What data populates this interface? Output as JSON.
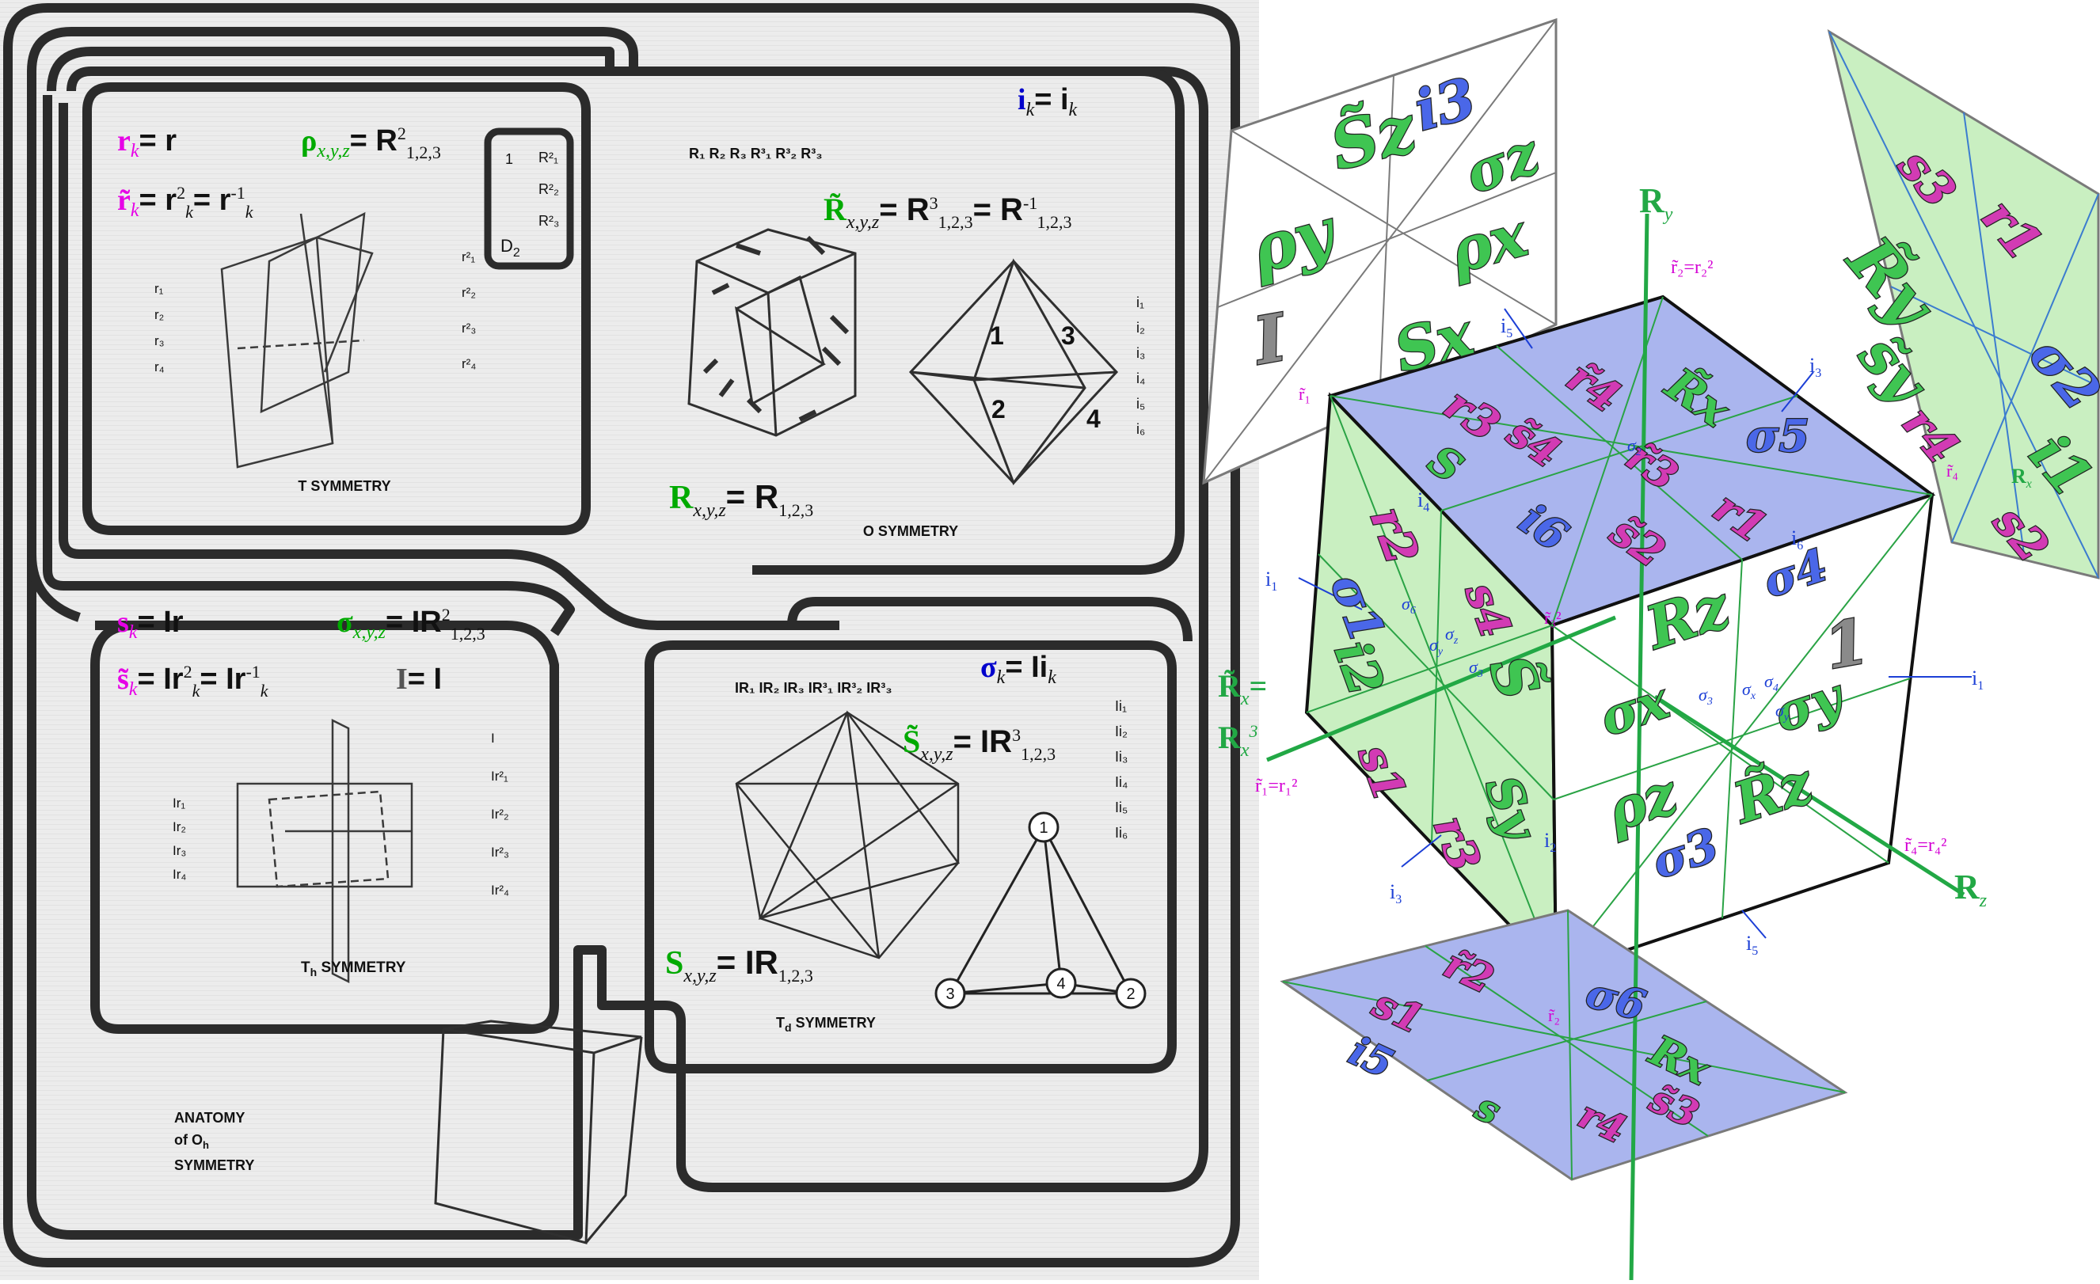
{
  "colors": {
    "scan_bg": "#e9e9e9",
    "frame": "#2b2b2b",
    "magenta": "#e600e6",
    "green": "#00aa00",
    "blue": "#0000cc",
    "cube_green": "#c9efc1",
    "cube_blue": "#aab5ee",
    "label_blue": "#1c3fd6",
    "label_green": "#22a845"
  },
  "left_panel": {
    "title": {
      "line1": "ANATOMY",
      "line2": "of O",
      "sub": "h",
      "line3": "SYMMETRY"
    },
    "t_panel": {
      "caption": "T SYMMETRY",
      "eq_r": {
        "lhs": "r",
        "sub": "k",
        "rhs": "= r"
      },
      "eq_rtilde": {
        "lhs": "r̃",
        "sub": "k",
        "rhs": "= r",
        "sup1": "2",
        "mid": "= r",
        "sub2": "k",
        "sup2": "-1",
        "sub3": "k"
      },
      "eq_rho": {
        "lhs": "ρ",
        "sub": "x,y,z",
        "rhs": "= R",
        "sup": "2",
        "sub2": "1,2,3"
      },
      "d2_box": {
        "label": "D",
        "sub": "2",
        "one": "1",
        "r_items": [
          "R²₁",
          "R²₂",
          "R²₃"
        ]
      },
      "r_list": [
        "r₁",
        "r₂",
        "r₃",
        "r₄"
      ],
      "r2_list": [
        "r²₁",
        "r²₂",
        "r²₃",
        "r²₄"
      ]
    },
    "o_panel": {
      "caption": "O SYMMETRY",
      "eq_i": {
        "lhs": "i",
        "sub": "k",
        "rhs": "= i",
        "sub2": "k"
      },
      "eq_Rtilde": {
        "lhs": "R̃",
        "sub": "x,y,z",
        "rhs": "= R",
        "sup": "3",
        "sub2": "1,2,3",
        "mid": "= R",
        "sup2": "-1",
        "sub3": "1,2,3"
      },
      "eq_R": {
        "lhs": "R",
        "sub": "x,y,z",
        "rhs": "= R",
        "sub2": "1,2,3"
      },
      "header": "R₁ R₂ R₃ R³₁ R³₂ R³₃",
      "i_list": [
        "i₁",
        "i₂",
        "i₃",
        "i₄",
        "i₅",
        "i₆"
      ],
      "oct_nums": [
        "1",
        "3",
        "2",
        "4"
      ]
    },
    "th_panel": {
      "caption": "T",
      "caption_sub": "h",
      "caption_rest": " SYMMETRY",
      "eq_s": {
        "lhs": "s",
        "sub": "k",
        "rhs": "= Ir"
      },
      "eq_stilde": {
        "lhs": "s̃",
        "sub": "k",
        "rhs": "= Ir",
        "sup": "2",
        "sub2": "k",
        "mid": "= Ir",
        "sup2": "-1",
        "sub3": "k"
      },
      "eq_sigma": {
        "lhs": "σ",
        "sub": "x,y,z",
        "rhs": "= IR",
        "sup": "2",
        "sub2": "1,2,3"
      },
      "eq_I": {
        "lhs": "I",
        "rhs": "= I"
      },
      "ir_list": [
        "Ir₁",
        "Ir₂",
        "Ir₃",
        "Ir₄"
      ],
      "ir2_list": [
        "I",
        "Ir²₁",
        "Ir²₂",
        "Ir²₃",
        "Ir²₄"
      ]
    },
    "td_panel": {
      "caption": "T",
      "caption_sub": "d",
      "caption_rest": " SYMMETRY",
      "eq_sigmak": {
        "lhs": "σ",
        "sub": "k",
        "rhs": "= Ii",
        "sub2": "k"
      },
      "eq_Stilde": {
        "lhs": "S̃",
        "sub": "x,y,z",
        "rhs": "= IR",
        "sup": "3",
        "sub2": "1,2,3"
      },
      "eq_S": {
        "lhs": "S",
        "sub": "x,y,z",
        "rhs": "= IR",
        "sub2": "1,2,3"
      },
      "header": "IR₁ IR₂ IR₃ IR³₁ IR³₂ IR³₃",
      "ii_list": [
        "Ii₁",
        "Ii₂",
        "Ii₃",
        "Ii₄",
        "Ii₅",
        "Ii₆"
      ],
      "tri_nums": [
        "1",
        "3",
        "4",
        "2"
      ]
    }
  },
  "right_panel": {
    "back_left_panel": [
      "S̃z",
      "i3",
      "σz",
      "ρy",
      "ρx",
      "I",
      "Sx"
    ],
    "back_right_panel": [
      "s3",
      "r1",
      "R̃y",
      "s̃y",
      "σ2",
      "r4",
      "i1",
      "s2"
    ],
    "top_face": [
      "r3",
      "r̃4",
      "R̃x",
      "σ5",
      "S",
      "s̃4",
      "r̃3",
      "i6",
      "s̃2",
      "r1",
      "σ"
    ],
    "left_face": [
      "r2",
      "σ1",
      "i2",
      "S̃",
      "s4",
      "s1",
      "r3",
      "Sy"
    ],
    "right_face": [
      "σ4",
      "Rz",
      "1",
      "σx",
      "σy",
      "ρz",
      "R̃z",
      "σ3"
    ],
    "bottom_panel": [
      "r̃2",
      "s1",
      "σ6",
      "i5",
      "Rx",
      "s̃3",
      "r4",
      "s"
    ],
    "axis_labels": {
      "Ry": "R",
      "Ry_sub": "y",
      "Rz": "R",
      "Rz_sub": "z",
      "Rx_tilde": "R̃",
      "Rx_tilde_sub": "x",
      "Rx_tilde_eq": "=",
      "Rx3": "R",
      "Rx3_sub": "x",
      "Rx3_sup": "3",
      "r2eq": "r̃₂=r₂²",
      "r1eq": "r̃₁=r₁²",
      "r4eq": "r̃₄=r₄²",
      "r3eq": "r̃₃²",
      "r1small": "r̃₁",
      "r2small": "r̃₂",
      "r4small": "r̃₄",
      "Rx_small": "R",
      "Rx_small_sub": "x"
    },
    "outline_labels": {
      "i1": "i",
      "i1_sub": "1",
      "i1b": "i",
      "i1b_sub": "1",
      "i2": "i",
      "i2_sub": "2",
      "i3": "i",
      "i3_sub": "3",
      "i3b": "i",
      "i3b_sub": "3",
      "i4": "i",
      "i4_sub": "4",
      "i5": "i",
      "i5_sub": "5",
      "i5b": "i",
      "i5b_sub": "5",
      "i6": "i",
      "i6_sub": "6",
      "sigma_labels": [
        "σ",
        "σ",
        "σ",
        "σ",
        "σ",
        "σ",
        "σ",
        "σ",
        "σ"
      ],
      "sigma_subs": [
        "6",
        "y",
        "z",
        "3",
        "3",
        "x",
        "4",
        "y",
        "2"
      ]
    }
  }
}
